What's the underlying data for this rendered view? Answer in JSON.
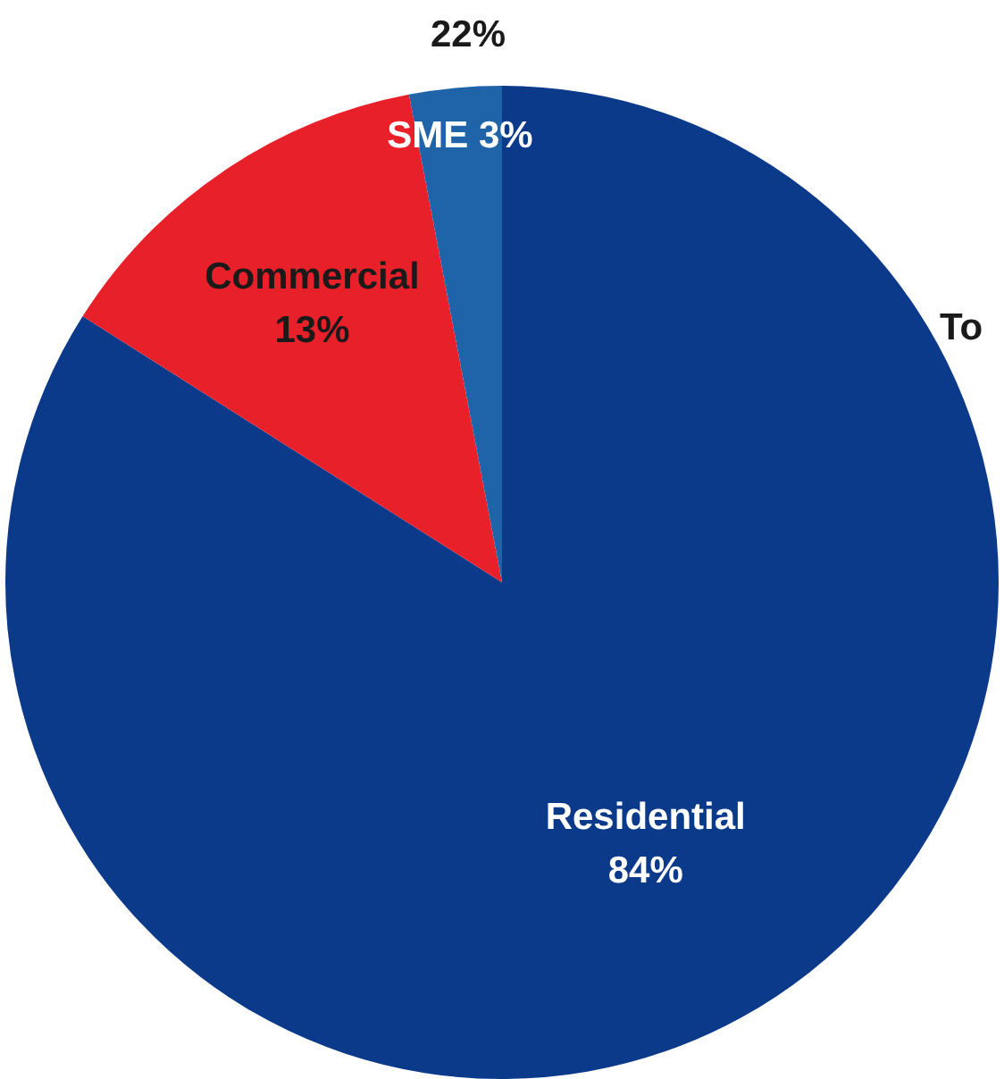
{
  "chart_data": {
    "type": "pie",
    "categories": [
      "Residential",
      "Commercial",
      "SME"
    ],
    "values": [
      84,
      13,
      3
    ],
    "value_labels": [
      "84%",
      "13%",
      "3%"
    ],
    "colors": [
      "#0b3a8a",
      "#e8202a",
      "#1f64a8"
    ],
    "annotations": [
      "22%",
      "To"
    ],
    "legend": false
  }
}
